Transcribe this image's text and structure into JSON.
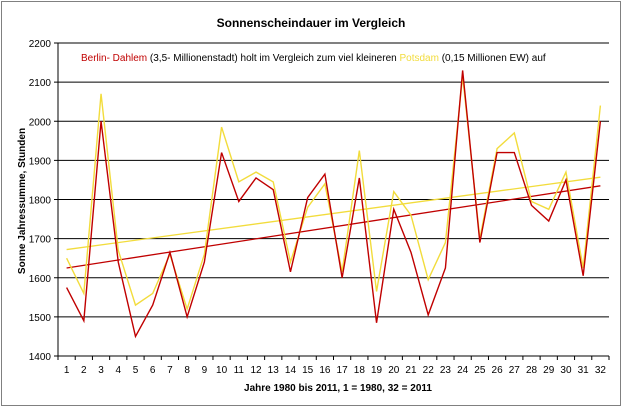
{
  "chart_data": {
    "type": "line",
    "title": "Sonnenscheindauer im Vergleich",
    "xlabel": "Jahre 1980 bis 2011, 1 = 1980, 32 = 2011",
    "ylabel": "Sonne Jahressumme, Stunden",
    "annotation": {
      "berlin_part": "Berlin- Dahlem",
      "middle_part": " (3,5- Millionenstadt) holt im Vergleich zum viel kleineren ",
      "potsdam_part": "Potsdam",
      "end_part": " (0,15 Millionen EW) auf"
    },
    "x": [
      1,
      2,
      3,
      4,
      5,
      6,
      7,
      8,
      9,
      10,
      11,
      12,
      13,
      14,
      15,
      16,
      17,
      18,
      19,
      20,
      21,
      22,
      23,
      24,
      25,
      26,
      27,
      28,
      29,
      30,
      31,
      32
    ],
    "ylim": [
      1400,
      2200
    ],
    "yticks": [
      1400,
      1500,
      1600,
      1700,
      1800,
      1900,
      2000,
      2100,
      2200
    ],
    "grid": "horizontal",
    "legend": "none",
    "series": [
      {
        "name": "Potsdam",
        "color": "#f2dc3c",
        "values": [
          1650,
          1560,
          2070,
          1670,
          1530,
          1560,
          1660,
          1520,
          1660,
          1985,
          1845,
          1870,
          1845,
          1640,
          1780,
          1840,
          1615,
          1925,
          1565,
          1820,
          1760,
          1595,
          1690,
          2115,
          1700,
          1930,
          1970,
          1795,
          1775,
          1870,
          1625,
          2040
        ]
      },
      {
        "name": "Berlin- Dahlem",
        "color": "#c00000",
        "values": [
          1575,
          1490,
          2000,
          1640,
          1450,
          1530,
          1665,
          1500,
          1640,
          1920,
          1795,
          1855,
          1825,
          1615,
          1805,
          1865,
          1600,
          1855,
          1485,
          1775,
          1665,
          1505,
          1625,
          2130,
          1690,
          1920,
          1920,
          1785,
          1745,
          1850,
          1605,
          2000
        ]
      }
    ],
    "trendlines": [
      {
        "series": "Potsdam",
        "color": "#f2dc3c",
        "start": [
          1,
          1672
        ],
        "end": [
          32,
          1857
        ]
      },
      {
        "series": "Berlin- Dahlem",
        "color": "#c00000",
        "start": [
          1,
          1625
        ],
        "end": [
          32,
          1835
        ]
      }
    ]
  }
}
